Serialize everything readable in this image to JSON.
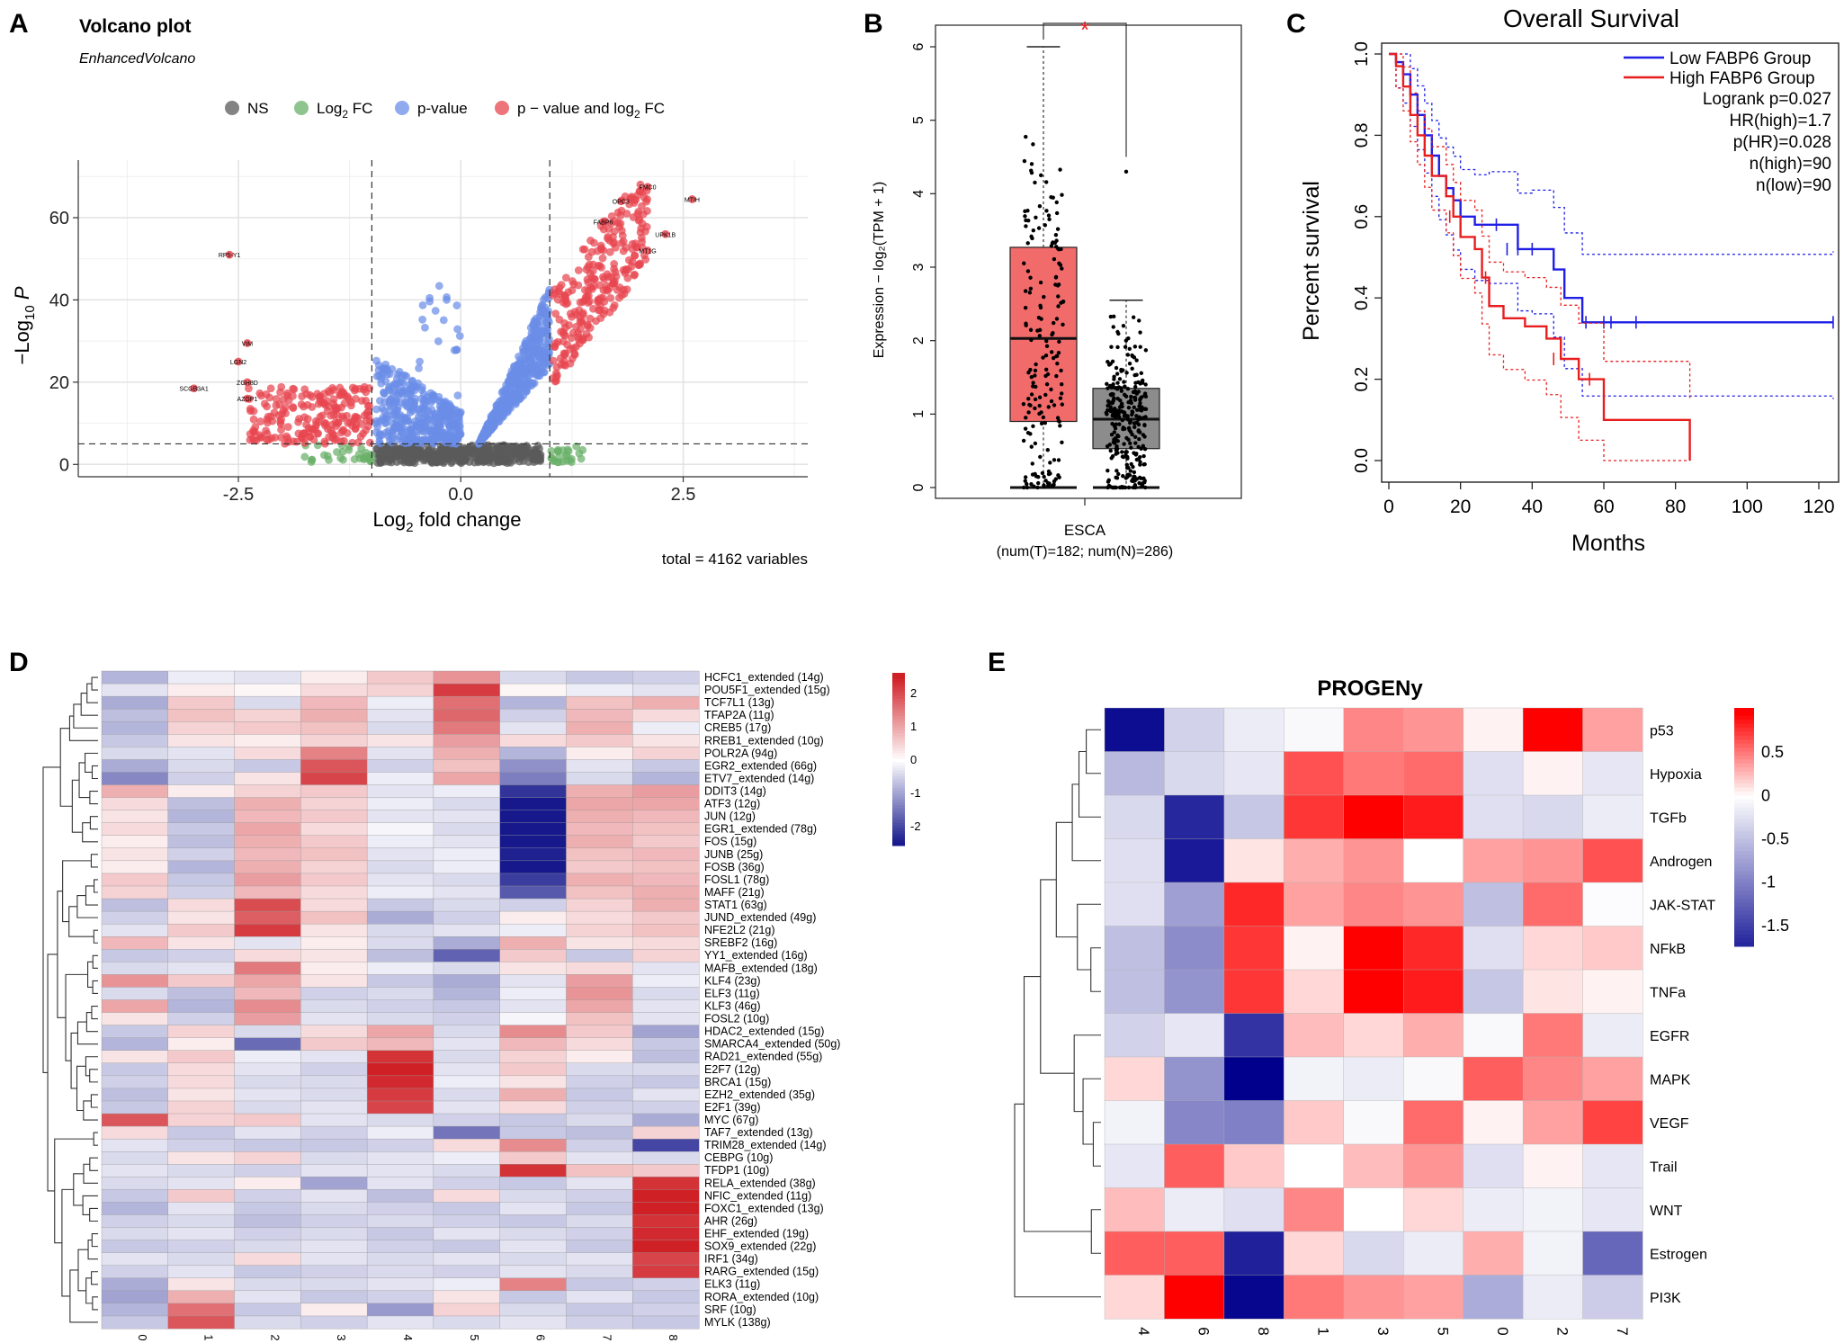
{
  "panel_letters": {
    "A": "A",
    "B": "B",
    "C": "C",
    "D": "D",
    "E": "E"
  },
  "chart_data": [
    {
      "panel": "A",
      "type": "scatter",
      "title": "Volcano plot",
      "subtitle": "EnhancedVolcano",
      "xlabel_main": "Log",
      "xlabel_sub": "2",
      "xlabel_tail": " fold change",
      "ylabel_main": "−Log",
      "ylabel_sub": "10",
      "ylabel_tail": " P",
      "xlim": [
        -4.3,
        3.9
      ],
      "ylim": [
        -3,
        74
      ],
      "xticks": [
        -2.5,
        0.0,
        2.5
      ],
      "xtick_labels": [
        "-2.5",
        "0.0",
        "2.5"
      ],
      "yticks": [
        0,
        20,
        40,
        60
      ],
      "ytick_labels": [
        "0",
        "20",
        "40",
        "60"
      ],
      "cutoff_fc": [
        -1,
        1
      ],
      "cutoff_p": 5,
      "legend": [
        {
          "key": "NS",
          "label": "NS",
          "color": "#5a5a5a"
        },
        {
          "key": "FC",
          "label": "Log",
          "sub": "2",
          "tail": " FC",
          "color": "#6ab06a"
        },
        {
          "key": "P",
          "label": "p-value",
          "color": "#6b8de8"
        },
        {
          "key": "PFC",
          "label": "p − value and log",
          "sub": "2",
          "tail": " FC",
          "color": "#e8454f"
        }
      ],
      "caption": "total = 4162 variables",
      "labels": [
        {
          "text": "FMC0",
          "x": 2.1,
          "y": 67.5
        },
        {
          "text": "MTIH",
          "x": 2.6,
          "y": 64.5
        },
        {
          "text": "OPC3",
          "x": 1.8,
          "y": 64.0
        },
        {
          "text": "FABP6",
          "x": 1.6,
          "y": 59.0
        },
        {
          "text": "UPK1B",
          "x": 2.3,
          "y": 56.0
        },
        {
          "text": "MT1G",
          "x": 2.1,
          "y": 52.0
        },
        {
          "text": "RP5-Y1",
          "x": -2.6,
          "y": 51.0
        },
        {
          "text": "VIM",
          "x": -2.4,
          "y": 29.5
        },
        {
          "text": "LGN2",
          "x": -2.5,
          "y": 25.0
        },
        {
          "text": "ZGH8D",
          "x": -2.4,
          "y": 20.0
        },
        {
          "text": "SCGB3A1",
          "x": -3.0,
          "y": 18.5
        },
        {
          "text": "AZGP1",
          "x": -2.4,
          "y": 16.0
        }
      ]
    },
    {
      "panel": "B",
      "type": "box",
      "ylabel": "Expression − log₂(TPM + 1)",
      "ylim": [
        -0.2,
        6.4
      ],
      "yticks": [
        0,
        1,
        2,
        3,
        4,
        5,
        6
      ],
      "ytick_labels": [
        "0",
        "1",
        "2",
        "3",
        "4",
        "5",
        "6"
      ],
      "category": "ESCA",
      "category_note": "(num(T)=182; num(N)=286)",
      "significance": "*",
      "boxes": [
        {
          "group": "T",
          "color": "#f26b6b",
          "min": 0,
          "q1": 0.9,
          "median": 2.03,
          "q3": 3.27,
          "max": 6.0
        },
        {
          "group": "N",
          "color": "#8c8c8c",
          "min": 0,
          "q1": 0.53,
          "median": 0.93,
          "q3": 1.35,
          "max": 2.55
        }
      ]
    },
    {
      "panel": "C",
      "type": "line",
      "title": "Overall Survival",
      "xlabel": "Months",
      "ylabel": "Percent survival",
      "xlim": [
        0,
        125
      ],
      "ylim": [
        0,
        1.0
      ],
      "xticks": [
        0,
        20,
        40,
        60,
        80,
        100,
        120
      ],
      "xtick_labels": [
        "0",
        "20",
        "40",
        "60",
        "80",
        "100",
        "120"
      ],
      "yticks": [
        0.0,
        0.2,
        0.4,
        0.6,
        0.8,
        1.0
      ],
      "ytick_labels": [
        "0.0",
        "0.2",
        "0.4",
        "0.6",
        "0.8",
        "1.0"
      ],
      "legend": [
        {
          "label": "Low FABP6 Group",
          "color": "#1f1fe6"
        },
        {
          "label": "High FABP6 Group",
          "color": "#e81e1e"
        }
      ],
      "stats": [
        "Logrank p=0.027",
        "HR(high)=1.7",
        "p(HR)=0.028",
        "n(high)=90",
        "n(low)=90"
      ],
      "series": [
        {
          "name": "Low FABP6 Group",
          "color": "#1f1fe6",
          "x": [
            0,
            2,
            4,
            6,
            8,
            10,
            12,
            14,
            16,
            18,
            20,
            24,
            28,
            36,
            40,
            46,
            49,
            54,
            124
          ],
          "y": [
            1.0,
            0.98,
            0.95,
            0.9,
            0.85,
            0.8,
            0.75,
            0.7,
            0.67,
            0.64,
            0.6,
            0.58,
            0.58,
            0.52,
            0.52,
            0.47,
            0.4,
            0.34,
            0.34
          ]
        },
        {
          "name": "High FABP6 Group",
          "color": "#e81e1e",
          "x": [
            0,
            2,
            4,
            6,
            8,
            10,
            12,
            16,
            18,
            20,
            24,
            26,
            28,
            32,
            38,
            44,
            48,
            53,
            60,
            84
          ],
          "y": [
            1.0,
            0.97,
            0.92,
            0.85,
            0.8,
            0.75,
            0.7,
            0.65,
            0.6,
            0.55,
            0.52,
            0.45,
            0.38,
            0.35,
            0.33,
            0.3,
            0.25,
            0.2,
            0.1,
            0.0
          ]
        }
      ]
    },
    {
      "panel": "D",
      "type": "heatmap",
      "columns": [
        "0",
        "1",
        "2",
        "3",
        "4",
        "5",
        "6",
        "7",
        "8"
      ],
      "rows": [
        "HCFC1_extended (14g)",
        "POU5F1_extended (15g)",
        "TCF7L1 (13g)",
        "TFAP2A (11g)",
        "CREB5 (17g)",
        "RREB1_extended (10g)",
        "POLR2A (94g)",
        "EGR2_extended (66g)",
        "ETV7_extended (14g)",
        "DDIT3 (14g)",
        "ATF3 (12g)",
        "JUN (12g)",
        "EGR1_extended (78g)",
        "FOS (15g)",
        "JUNB (25g)",
        "FOSB (36g)",
        "FOSL1 (78g)",
        "MAFF (21g)",
        "STAT1 (63g)",
        "JUND_extended (49g)",
        "NFE2L2 (21g)",
        "SREBF2 (16g)",
        "YY1_extended (16g)",
        "MAFB_extended (18g)",
        "KLF4 (23g)",
        "ELF3 (11g)",
        "KLF3 (46g)",
        "FOSL2 (10g)",
        "HDAC2_extended (15g)",
        "SMARCA4_extended (50g)",
        "RAD21_extended (55g)",
        "E2F7 (12g)",
        "BRCA1 (15g)",
        "EZH2_extended (35g)",
        "E2F1 (39g)",
        "MYC (67g)",
        "TAF7_extended (13g)",
        "TRIM28_extended (14g)",
        "CEBPG (10g)",
        "TFDP1 (10g)",
        "RELA_extended (38g)",
        "NFIC_extended (11g)",
        "FOXC1_extended (13g)",
        "AHR (26g)",
        "EHF_extended (19g)",
        "SOX9_extended (22g)",
        "IRF1 (34g)",
        "RARG_extended (15g)",
        "ELK3 (11g)",
        "RORA_extended (10g)",
        "SRF (10g)",
        "MYLK (138g)"
      ],
      "scale_ticks": [
        2,
        1,
        0,
        -1,
        -2
      ],
      "scale_labels": [
        "2",
        "1",
        "0",
        "-1",
        "-2"
      ],
      "values": [
        [
          -0.8,
          -0.2,
          -0.3,
          0.2,
          0.6,
          1.2,
          -0.4,
          -0.6,
          -0.5
        ],
        [
          -0.3,
          0.2,
          0.1,
          0.4,
          0.5,
          2.2,
          0.1,
          -0.2,
          -0.3
        ],
        [
          -0.9,
          0.6,
          -0.4,
          0.8,
          -0.2,
          1.6,
          -0.8,
          0.7,
          0.9
        ],
        [
          -0.7,
          0.7,
          0.5,
          0.9,
          -0.3,
          1.7,
          -0.5,
          0.8,
          0.4
        ],
        [
          -0.8,
          0.5,
          0.6,
          0.7,
          -0.4,
          1.5,
          -0.3,
          0.9,
          -0.2
        ],
        [
          -0.6,
          0.3,
          0.2,
          0.5,
          0.3,
          1.1,
          0.4,
          0.6,
          0.3
        ],
        [
          -0.4,
          -0.3,
          0.4,
          1.4,
          -0.3,
          0.9,
          -0.8,
          0.2,
          0.5
        ],
        [
          -0.9,
          -0.4,
          -0.6,
          1.9,
          -0.5,
          0.7,
          -1.2,
          -0.3,
          -0.6
        ],
        [
          -1.3,
          -0.5,
          0.3,
          2.1,
          -0.2,
          1.0,
          -1.4,
          -0.4,
          -0.8
        ],
        [
          0.9,
          0.2,
          0.5,
          0.6,
          -0.3,
          -0.2,
          -2.2,
          0.9,
          1.1
        ],
        [
          0.4,
          -0.7,
          0.9,
          0.5,
          -0.2,
          -0.4,
          -2.6,
          1.0,
          1.0
        ],
        [
          0.3,
          -0.8,
          0.8,
          0.6,
          -0.3,
          -0.3,
          -2.7,
          0.9,
          0.8
        ],
        [
          0.4,
          -0.6,
          1.0,
          0.4,
          -0.1,
          -0.4,
          -2.5,
          0.8,
          0.7
        ],
        [
          0.2,
          -0.7,
          0.9,
          0.6,
          -0.2,
          -0.3,
          -2.6,
          0.9,
          0.6
        ],
        [
          0.3,
          -0.5,
          0.8,
          0.7,
          -0.3,
          -0.2,
          -2.4,
          0.7,
          0.8
        ],
        [
          0.2,
          -0.8,
          0.9,
          0.5,
          -0.4,
          -0.2,
          -2.5,
          0.6,
          0.7
        ],
        [
          0.6,
          -0.6,
          1.1,
          0.6,
          -0.3,
          -0.4,
          -2.1,
          0.9,
          0.8
        ],
        [
          0.5,
          -0.5,
          0.8,
          0.4,
          -0.2,
          -0.3,
          -1.8,
          0.7,
          0.9
        ],
        [
          -0.7,
          0.4,
          2.0,
          0.4,
          -0.6,
          -0.4,
          -0.5,
          0.5,
          0.9
        ],
        [
          -0.5,
          0.3,
          1.8,
          0.7,
          -0.9,
          -0.5,
          0.2,
          0.4,
          0.6
        ],
        [
          -0.3,
          0.6,
          2.2,
          0.3,
          -0.4,
          -0.3,
          -0.2,
          0.5,
          0.7
        ],
        [
          0.8,
          0.3,
          -0.3,
          0.2,
          -0.4,
          -0.9,
          0.9,
          0.3,
          0.4
        ],
        [
          -0.6,
          -0.5,
          0.4,
          0.3,
          -0.7,
          -1.7,
          0.6,
          -0.6,
          0.5
        ],
        [
          -0.4,
          -0.3,
          1.5,
          0.2,
          -0.2,
          -0.4,
          0.3,
          0.4,
          -0.3
        ],
        [
          1.2,
          0.6,
          1.0,
          0.3,
          -0.6,
          -0.9,
          -0.3,
          1.1,
          -0.2
        ],
        [
          -0.4,
          -0.7,
          0.8,
          -0.5,
          -0.4,
          -0.8,
          -0.2,
          1.2,
          -0.4
        ],
        [
          1.0,
          -0.8,
          1.3,
          -0.4,
          -0.5,
          -0.6,
          -0.3,
          1.0,
          -0.3
        ],
        [
          0.3,
          -0.5,
          1.1,
          -0.3,
          -0.4,
          -0.5,
          -0.1,
          0.7,
          -0.3
        ],
        [
          -0.6,
          0.5,
          -0.4,
          0.4,
          1.0,
          -0.4,
          1.3,
          0.6,
          -1.0
        ],
        [
          -0.8,
          0.2,
          -1.6,
          0.6,
          0.8,
          -0.3,
          0.8,
          0.4,
          -0.6
        ],
        [
          0.3,
          0.6,
          -0.2,
          -0.3,
          2.3,
          -0.4,
          0.5,
          0.2,
          -0.7
        ],
        [
          -0.6,
          0.4,
          -0.3,
          -0.5,
          2.5,
          -0.3,
          0.6,
          -0.4,
          -0.4
        ],
        [
          -0.5,
          0.4,
          -0.4,
          -0.4,
          2.4,
          -0.2,
          0.3,
          -0.5,
          -0.6
        ],
        [
          -0.7,
          0.3,
          -0.3,
          -0.4,
          2.2,
          -0.4,
          0.9,
          -0.6,
          -0.3
        ],
        [
          -0.6,
          0.5,
          -0.4,
          -0.3,
          2.1,
          -0.3,
          0.4,
          -0.5,
          -0.5
        ],
        [
          1.9,
          0.5,
          0.6,
          -0.3,
          -0.4,
          -0.5,
          -0.6,
          -0.4,
          -0.9
        ],
        [
          0.4,
          -0.6,
          -0.3,
          -0.5,
          -0.2,
          -1.5,
          -0.6,
          -0.7,
          0.5
        ],
        [
          -0.3,
          -0.5,
          -0.6,
          -0.6,
          -0.5,
          0.4,
          1.3,
          -0.5,
          -2.0
        ],
        [
          -0.4,
          0.3,
          0.5,
          -0.4,
          -0.3,
          -0.2,
          0.6,
          -0.3,
          -0.4
        ],
        [
          -0.3,
          -0.4,
          -0.5,
          -0.3,
          -0.3,
          -0.4,
          2.3,
          0.7,
          0.6
        ],
        [
          -0.4,
          -0.3,
          0.2,
          -1.0,
          -0.3,
          -0.5,
          -0.6,
          -0.3,
          2.3
        ],
        [
          -0.6,
          0.6,
          -0.5,
          -0.3,
          -0.7,
          0.4,
          -0.4,
          -0.5,
          2.5
        ],
        [
          -0.8,
          -0.3,
          -0.6,
          -0.4,
          -0.5,
          -0.6,
          -0.3,
          -0.6,
          2.6
        ],
        [
          -0.5,
          -0.4,
          -0.7,
          -0.5,
          -0.4,
          -0.5,
          -0.6,
          -0.4,
          2.3
        ],
        [
          -0.4,
          -0.3,
          -0.5,
          -0.4,
          -0.6,
          -0.3,
          -0.4,
          -0.5,
          2.4
        ],
        [
          -0.6,
          -0.5,
          -0.4,
          -0.3,
          -0.5,
          -0.6,
          -0.3,
          -0.6,
          2.5
        ],
        [
          -0.3,
          -0.4,
          0.4,
          -0.3,
          -0.4,
          -0.3,
          -0.4,
          -0.3,
          2.1
        ],
        [
          -0.5,
          -0.3,
          -0.6,
          -0.5,
          -0.4,
          -0.5,
          -0.3,
          -0.4,
          2.2
        ],
        [
          -0.9,
          0.3,
          -0.4,
          -0.4,
          -0.3,
          -0.2,
          1.4,
          -0.6,
          -0.5
        ],
        [
          -1.0,
          0.9,
          -0.3,
          -0.6,
          -0.5,
          0.3,
          -0.6,
          -0.3,
          -0.6
        ],
        [
          -0.8,
          1.6,
          -0.6,
          0.2,
          -1.1,
          0.5,
          -0.4,
          -0.6,
          -0.5
        ],
        [
          -0.6,
          1.9,
          -0.4,
          -0.5,
          -0.3,
          -0.4,
          -0.3,
          -0.5,
          -0.6
        ]
      ]
    },
    {
      "panel": "E",
      "type": "heatmap",
      "title": "PROGENy",
      "columns": [
        "4",
        "6",
        "8",
        "1",
        "3",
        "5",
        "0",
        "2",
        "7"
      ],
      "rows": [
        "p53",
        "Hypoxia",
        "TGFb",
        "Androgen",
        "JAK-STAT",
        "NFkB",
        "TNFa",
        "EGFR",
        "MAPK",
        "VEGF",
        "Trail",
        "WNT",
        "Estrogen",
        "PI3K"
      ],
      "scale_ticks": [
        0.5,
        0,
        -0.5,
        -1,
        -1.5
      ],
      "scale_labels": [
        "0.5",
        "0",
        "-0.5",
        "-1",
        "-1.5"
      ],
      "values": [
        [
          -1.9,
          -0.35,
          -0.15,
          -0.05,
          0.45,
          0.4,
          0.05,
          0.95,
          0.35
        ],
        [
          -0.55,
          -0.3,
          -0.2,
          0.65,
          0.5,
          0.55,
          -0.25,
          0.05,
          -0.2
        ],
        [
          -0.3,
          -1.7,
          -0.45,
          0.75,
          0.95,
          0.85,
          -0.25,
          -0.3,
          -0.15
        ],
        [
          -0.25,
          -1.8,
          0.1,
          0.3,
          0.4,
          0.0,
          0.35,
          0.4,
          0.65
        ],
        [
          -0.25,
          -0.75,
          0.8,
          0.35,
          0.45,
          0.4,
          -0.5,
          0.55,
          -0.02
        ],
        [
          -0.5,
          -0.9,
          0.75,
          0.05,
          0.95,
          0.8,
          -0.25,
          0.15,
          0.2
        ],
        [
          -0.5,
          -0.85,
          0.75,
          0.15,
          0.95,
          0.85,
          -0.45,
          0.1,
          0.05
        ],
        [
          -0.35,
          -0.2,
          -1.6,
          0.25,
          0.15,
          0.3,
          -0.05,
          0.5,
          -0.15
        ],
        [
          0.15,
          -0.85,
          -2.0,
          -0.1,
          -0.15,
          -0.05,
          0.6,
          0.45,
          0.35
        ],
        [
          -0.1,
          -0.95,
          -1.0,
          0.2,
          -0.05,
          0.55,
          0.05,
          0.35,
          0.7
        ],
        [
          -0.2,
          0.6,
          0.2,
          0.0,
          0.25,
          0.4,
          -0.25,
          0.05,
          -0.2
        ],
        [
          0.25,
          -0.15,
          -0.25,
          0.45,
          0.0,
          0.15,
          -0.15,
          -0.1,
          -0.2
        ],
        [
          0.6,
          0.6,
          -1.75,
          0.15,
          -0.3,
          -0.15,
          0.3,
          -0.1,
          -1.2
        ],
        [
          0.15,
          0.95,
          -1.95,
          0.5,
          0.4,
          0.35,
          -0.65,
          -0.15,
          -0.4
        ]
      ]
    }
  ]
}
